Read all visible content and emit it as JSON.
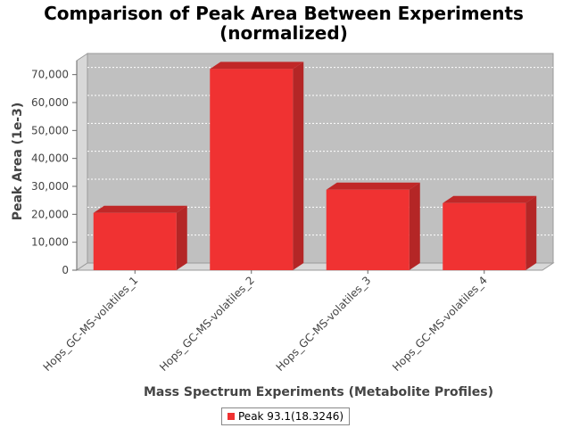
{
  "chart_data": {
    "type": "bar",
    "title": [
      "Comparison of Peak Area Between Experiments",
      "(normalized)"
    ],
    "xlabel": "Mass Spectrum Experiments (Metabolite Profiles)",
    "ylabel": "Peak Area (1e-3)",
    "categories": [
      "Hops_GC-MS-volatiles_1",
      "Hops_GC-MS-volatiles_2",
      "Hops_GC-MS-volatiles_3",
      "Hops_GC-MS-volatiles_4"
    ],
    "series": [
      {
        "name": "Peak 93.1(18.3246)",
        "values": [
          20500,
          72000,
          28800,
          24000
        ]
      }
    ],
    "ylim": [
      0,
      75000
    ],
    "yticks": [
      0,
      10000,
      20000,
      30000,
      40000,
      50000,
      60000,
      70000
    ],
    "ytick_labels": [
      "0",
      "10,000",
      "20,000",
      "30,000",
      "40,000",
      "50,000",
      "60,000",
      "70,000"
    ],
    "grid": true,
    "legend_position": "bottom",
    "colors": {
      "bar_front": "#f03232",
      "bar_top": "#c02828",
      "bar_side": "#b42626",
      "plot_background": "#c0c0c0",
      "floor": "#d8d8d8",
      "grid": "#ffffff"
    }
  }
}
